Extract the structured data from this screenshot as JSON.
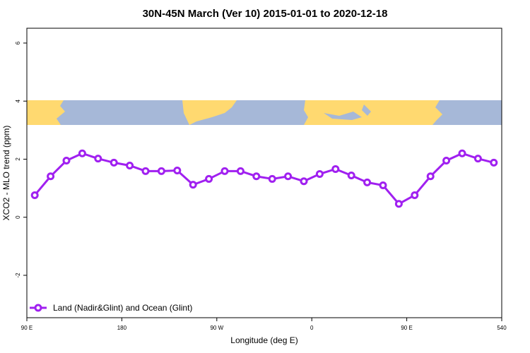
{
  "chart_data": {
    "type": "line",
    "title": "30N-45N March (Ver 10)   2015-01-01 to 2020-12-18",
    "x_label": "Longitude (deg E)",
    "y_label": "XCO2 - MLO trend (ppm)",
    "x": [
      97.5,
      112.5,
      127.5,
      142.5,
      157.5,
      172.5,
      187.5,
      202.5,
      217.5,
      232.5,
      247.5,
      262.5,
      277.5,
      292.5,
      307.5,
      322.5,
      337.5,
      352.5,
      367.5,
      382.5,
      397.5,
      412.5,
      427.5,
      442.5,
      457.5,
      472.5,
      487.5,
      502.5,
      517.5,
      532.5
    ],
    "series": [
      {
        "name": "Land (Nadir&Glint) and Ocean (Glint)",
        "color": "#a020f0",
        "values": [
          0.76,
          1.41,
          1.95,
          2.2,
          2.02,
          1.88,
          1.78,
          1.59,
          1.59,
          1.61,
          1.12,
          1.32,
          1.59,
          1.59,
          1.41,
          1.32,
          1.41,
          1.24,
          1.49,
          1.66,
          1.44,
          1.2,
          1.1,
          0.46,
          0.76,
          1.41,
          1.95,
          2.2,
          2.02,
          1.88
        ]
      }
    ],
    "xlim": [
      90,
      540
    ],
    "xticks": [
      {
        "value": 90,
        "label": "90 E"
      },
      180,
      {
        "value": 270,
        "label": "90 W"
      },
      {
        "value": 360,
        "label": "0"
      },
      {
        "value": 450,
        "label": "90 E"
      },
      540
    ],
    "ylim": [
      -3.46,
      6.51
    ],
    "yticks": [
      -2,
      0,
      2,
      4,
      6
    ],
    "legend": "bottom-left"
  }
}
